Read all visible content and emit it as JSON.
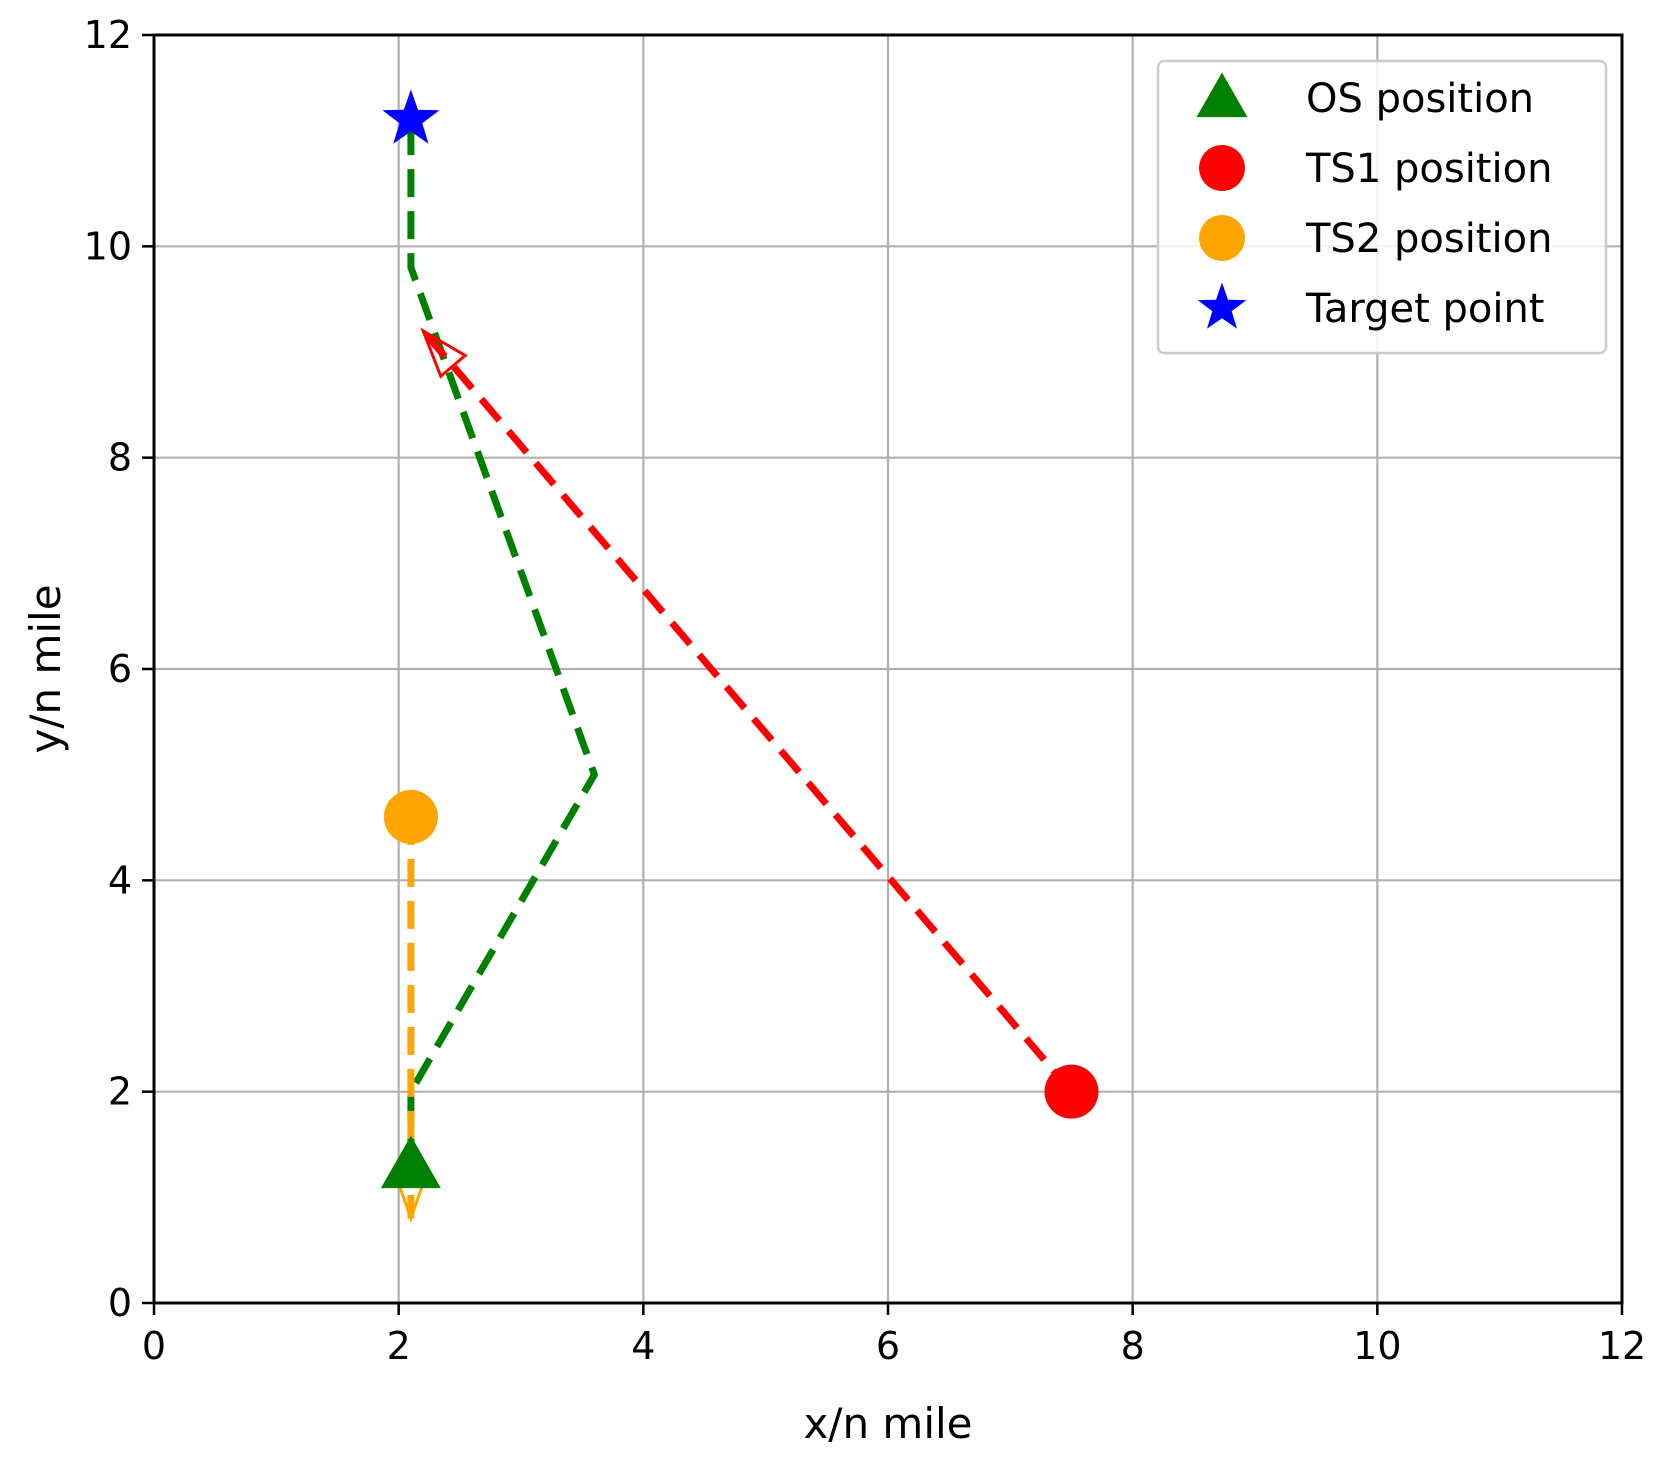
{
  "chart_data": {
    "type": "scatter",
    "xlabel": "x/n mile",
    "ylabel": "y/n mile",
    "xlim": [
      0,
      12
    ],
    "ylim": [
      0,
      12
    ],
    "xticks": [
      0,
      2,
      4,
      6,
      8,
      10,
      12
    ],
    "yticks": [
      0,
      2,
      4,
      6,
      8,
      10,
      12
    ],
    "grid": true,
    "legend_position": "top-right",
    "markers": [
      {
        "name": "OS position",
        "marker": "triangle",
        "color": "#008000",
        "x": 2.1,
        "y": 1.3
      },
      {
        "name": "TS1 position",
        "marker": "circle",
        "color": "#ff0000",
        "x": 7.5,
        "y": 2.0
      },
      {
        "name": "TS2 position",
        "marker": "circle",
        "color": "#ffa500",
        "x": 2.1,
        "y": 4.6
      },
      {
        "name": "Target point",
        "marker": "star",
        "color": "#0000ff",
        "x": 2.1,
        "y": 11.2
      }
    ],
    "paths": [
      {
        "color": "#008000",
        "style": "dashed",
        "points": [
          [
            2.1,
            1.3
          ],
          [
            2.1,
            2.0
          ],
          [
            3.6,
            5.0
          ],
          [
            2.1,
            9.8
          ],
          [
            2.1,
            11.2
          ]
        ]
      },
      {
        "color": "#ff0000",
        "style": "dashed-arrow",
        "points": [
          [
            7.5,
            2.0
          ],
          [
            2.2,
            9.2
          ]
        ]
      },
      {
        "color": "#ffa500",
        "style": "dashed-arrow",
        "points": [
          [
            2.1,
            4.6
          ],
          [
            2.1,
            0.8
          ]
        ]
      }
    ]
  }
}
